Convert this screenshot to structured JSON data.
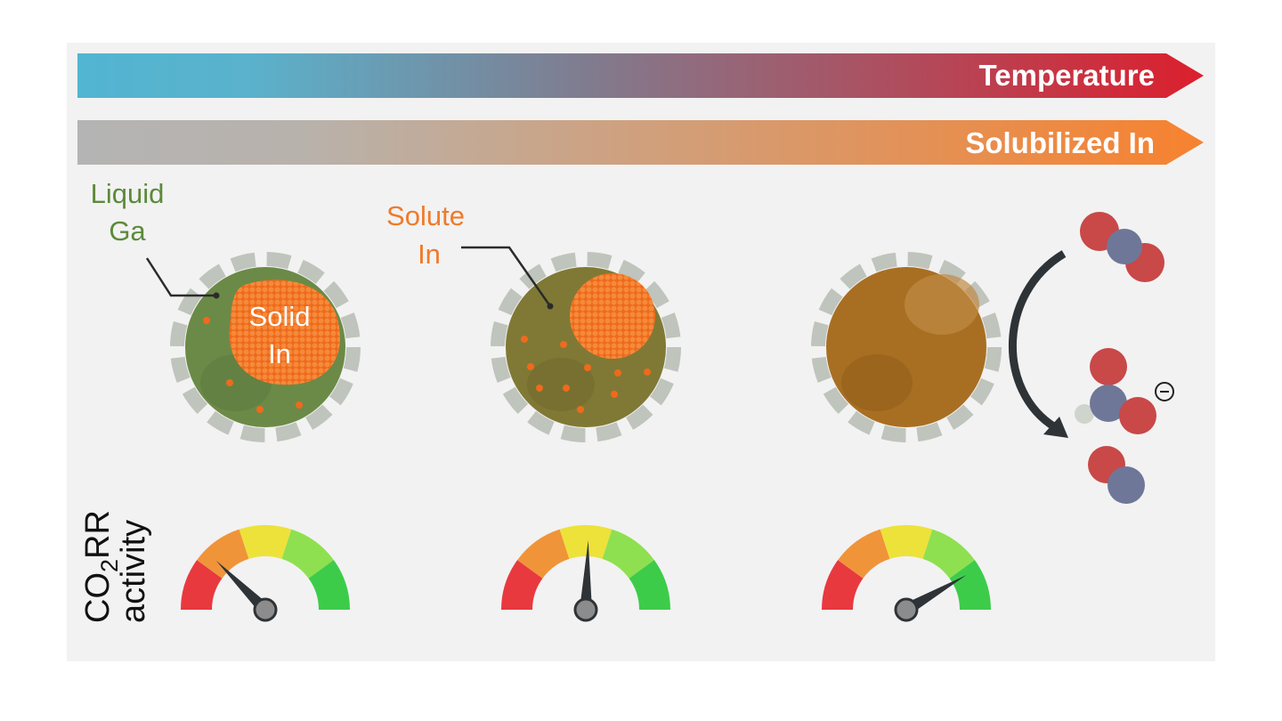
{
  "bars": {
    "temperature": "Temperature",
    "solubilized": "Solubilized In"
  },
  "labels": {
    "liquid_ga": [
      "Liquid",
      "Ga"
    ],
    "solid_in": [
      "Solid",
      "In"
    ],
    "solute_in": [
      "Solute",
      "In"
    ]
  },
  "axis_label": {
    "co": "CO",
    "subscript": "2",
    "rr": "RR",
    "activity": "activity"
  }
}
